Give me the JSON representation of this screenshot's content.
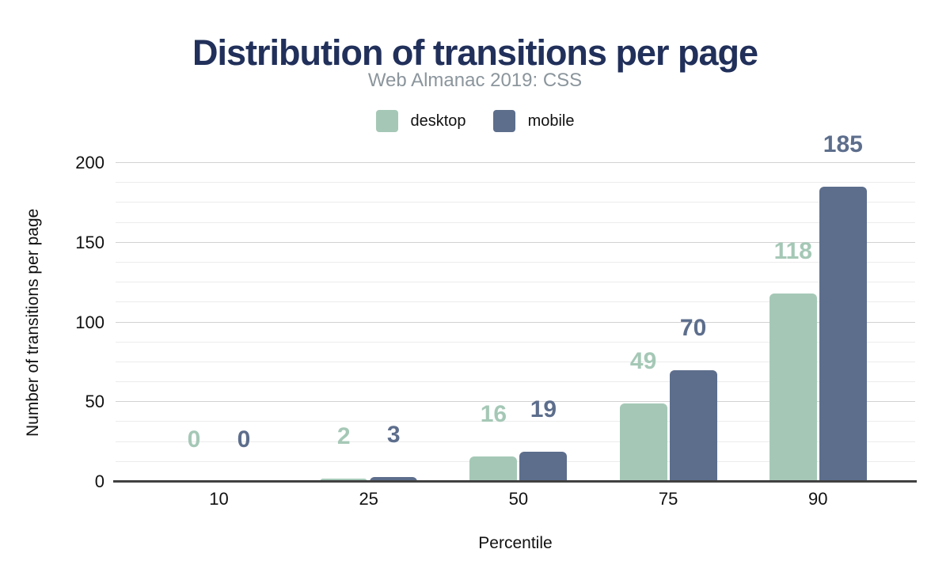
{
  "header": {
    "title": "Distribution of transitions per page",
    "subtitle": "Web Almanac 2019: CSS"
  },
  "chart_data": {
    "type": "bar",
    "title": "Distribution of transitions per page",
    "subtitle": "Web Almanac 2019: CSS",
    "categories": [
      "10",
      "25",
      "50",
      "75",
      "90"
    ],
    "series": [
      {
        "name": "desktop",
        "color": "#a5c8b6",
        "values": [
          0,
          2,
          16,
          49,
          118
        ]
      },
      {
        "name": "mobile",
        "color": "#5d6e8c",
        "values": [
          0,
          3,
          19,
          70,
          185
        ]
      }
    ],
    "xlabel": "Percentile",
    "ylabel": "Number of transitions per page",
    "ylim": [
      0,
      200
    ],
    "yticks": [
      0,
      50,
      100,
      150,
      200
    ],
    "minor_gridline_step": 12.5,
    "grid": true,
    "legend_position": "top",
    "value_labels": true
  },
  "colors": {
    "title": "#21305a",
    "subtitle": "#8b959c",
    "axis_line": "#414141",
    "gridline_minor": "#ececec",
    "gridline_major": "#d2d2d2",
    "tick_text": "#111111"
  }
}
